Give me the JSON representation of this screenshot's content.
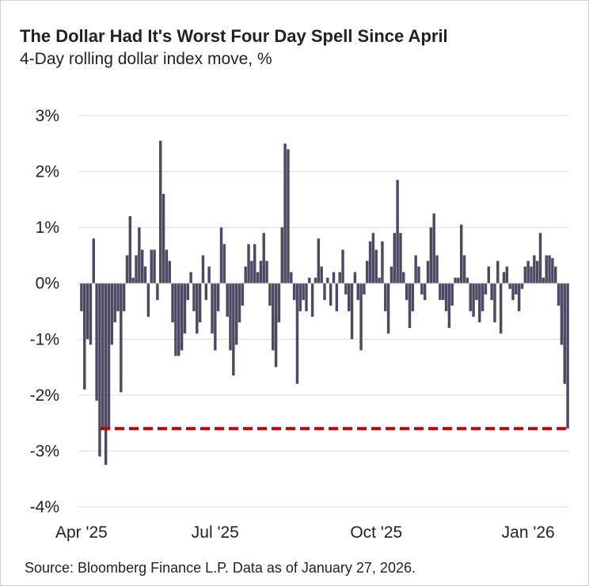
{
  "chart_data": {
    "type": "bar",
    "title": "The Dollar Had It's Worst Four Day Spell Since April",
    "subtitle": "4-Day rolling dollar index move, %",
    "source": "Source: Bloomberg Finance L.P. Data as of January 27, 2026.",
    "color": "#4b4a62",
    "grid": true,
    "ylim": [
      -4,
      3
    ],
    "yticks": [
      {
        "value": -4,
        "label": "-4%"
      },
      {
        "value": -3,
        "label": "-3%"
      },
      {
        "value": -2,
        "label": "-2%"
      },
      {
        "value": -1,
        "label": "-1%"
      },
      {
        "value": 0,
        "label": "0%"
      },
      {
        "value": 1,
        "label": "1%"
      },
      {
        "value": 2,
        "label": "2%"
      },
      {
        "value": 3,
        "label": "3%"
      }
    ],
    "reference_line": {
      "value": -2.6,
      "color": "#c00000"
    },
    "categories": [
      "Apr '25",
      null,
      null,
      null,
      null,
      null,
      null,
      null,
      null,
      null,
      null,
      null,
      null,
      null,
      null,
      null,
      null,
      null,
      null,
      null,
      null,
      null,
      null,
      null,
      null,
      null,
      null,
      null,
      null,
      null,
      null,
      null,
      null,
      null,
      null,
      null,
      null,
      null,
      null,
      null,
      null,
      null,
      null,
      null,
      "Jul '25",
      null,
      null,
      null,
      null,
      null,
      null,
      null,
      null,
      null,
      null,
      null,
      null,
      null,
      null,
      null,
      null,
      null,
      null,
      null,
      null,
      null,
      null,
      null,
      null,
      null,
      null,
      null,
      null,
      null,
      null,
      null,
      null,
      null,
      null,
      null,
      null,
      null,
      null,
      null,
      null,
      null,
      null,
      null,
      null,
      null,
      null,
      null,
      null,
      null,
      null,
      null,
      null,
      "Oct '25",
      null,
      null,
      null,
      null,
      null,
      null,
      null,
      null,
      null,
      null,
      null,
      null,
      null,
      null,
      null,
      null,
      null,
      null,
      null,
      null,
      null,
      null,
      null,
      null,
      null,
      null,
      null,
      null,
      null,
      null,
      null,
      null,
      null,
      null,
      null,
      null,
      null,
      null,
      null,
      null,
      null,
      null,
      null,
      null,
      null,
      null,
      null,
      null,
      null,
      "Jan '26",
      null,
      null,
      null,
      null,
      null,
      null,
      null,
      null,
      null,
      null,
      null,
      null,
      null
    ],
    "values": [
      -0.5,
      -1.9,
      -1.0,
      -1.1,
      0.8,
      -2.1,
      -3.1,
      -2.6,
      -3.25,
      -2.6,
      -1.1,
      -0.7,
      -0.5,
      -1.95,
      -0.5,
      0.5,
      1.2,
      0.1,
      0.5,
      1.0,
      0.6,
      0.3,
      -0.6,
      0.6,
      0.6,
      -0.3,
      2.55,
      1.6,
      0.6,
      0.4,
      -0.7,
      -1.3,
      -1.3,
      -1.2,
      -0.9,
      -0.3,
      0.2,
      -0.5,
      -0.9,
      -0.7,
      0.5,
      -0.3,
      0.3,
      -0.9,
      -1.2,
      -0.5,
      1.0,
      0.7,
      -0.6,
      -1.2,
      -1.65,
      -1.1,
      -0.7,
      -0.4,
      0.3,
      0.7,
      0.4,
      0.7,
      0.2,
      0.4,
      0.9,
      0.4,
      -0.4,
      -1.2,
      -1.5,
      -0.7,
      1.0,
      2.5,
      2.4,
      0.2,
      -0.3,
      -1.8,
      -0.5,
      -0.3,
      -0.5,
      0.1,
      -0.6,
      0.1,
      0.8,
      0.3,
      -0.3,
      0.1,
      -0.4,
      0.2,
      -0.5,
      0.2,
      0.6,
      -0.2,
      -0.5,
      -1.0,
      0.2,
      -0.3,
      -1.2,
      -0.2,
      0.4,
      0.75,
      0.9,
      0.6,
      0.1,
      0.75,
      -0.5,
      -0.9,
      0.3,
      0.9,
      1.85,
      0.9,
      0.2,
      -0.3,
      -0.8,
      -0.5,
      0.5,
      0.3,
      -0.2,
      -0.3,
      0.4,
      1.0,
      1.25,
      0.5,
      -0.3,
      -0.3,
      -0.5,
      -0.8,
      -0.4,
      0.1,
      0.1,
      1.05,
      0.5,
      0.1,
      -0.5,
      -0.6,
      -0.3,
      -0.7,
      -0.5,
      -0.2,
      0.3,
      -0.3,
      -0.7,
      0.4,
      -0.9,
      0.2,
      0.3,
      -0.1,
      -0.3,
      -0.2,
      -0.5,
      -0.1,
      0.3,
      0.4,
      0.3,
      0.5,
      0.4,
      0.9,
      0.1,
      0.5,
      0.5,
      0.45,
      0.3,
      -0.4,
      -1.1,
      -1.8,
      -2.6
    ]
  }
}
